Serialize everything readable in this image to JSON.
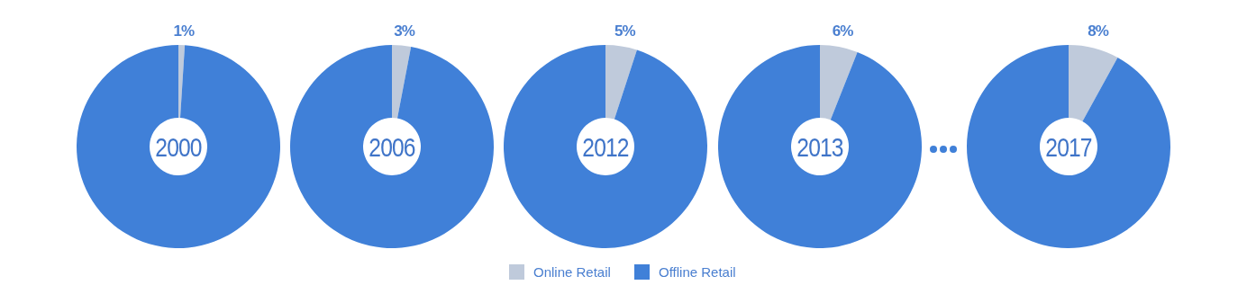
{
  "chart_data": [
    {
      "type": "donut",
      "title": "2000",
      "categories": [
        "Online Retail",
        "Offline Retail"
      ],
      "values": [
        1,
        99
      ],
      "colors": [
        "#bfcadb",
        "#4080d8"
      ],
      "value_labels": [
        "1%",
        null
      ],
      "legend": "bottom"
    },
    {
      "type": "donut",
      "title": "2006",
      "values": [
        3,
        97
      ],
      "colors": [
        "#bfcadb",
        "#4080d8"
      ],
      "value_labels": [
        "3%",
        null
      ]
    },
    {
      "type": "donut",
      "title": "2012",
      "values": [
        5,
        95
      ],
      "colors": [
        "#bfcadb",
        "#4080d8"
      ],
      "value_labels": [
        "5%",
        null
      ]
    },
    {
      "type": "donut",
      "title": "2013",
      "values": [
        6,
        94
      ],
      "colors": [
        "#bfcadb",
        "#4080d8"
      ],
      "value_labels": [
        "6%",
        null
      ]
    },
    {
      "type": "donut",
      "title": "2017",
      "values": [
        8,
        92
      ],
      "colors": [
        "#bfcadb",
        "#4080d8"
      ],
      "value_labels": [
        "8%",
        null
      ]
    }
  ]
}
